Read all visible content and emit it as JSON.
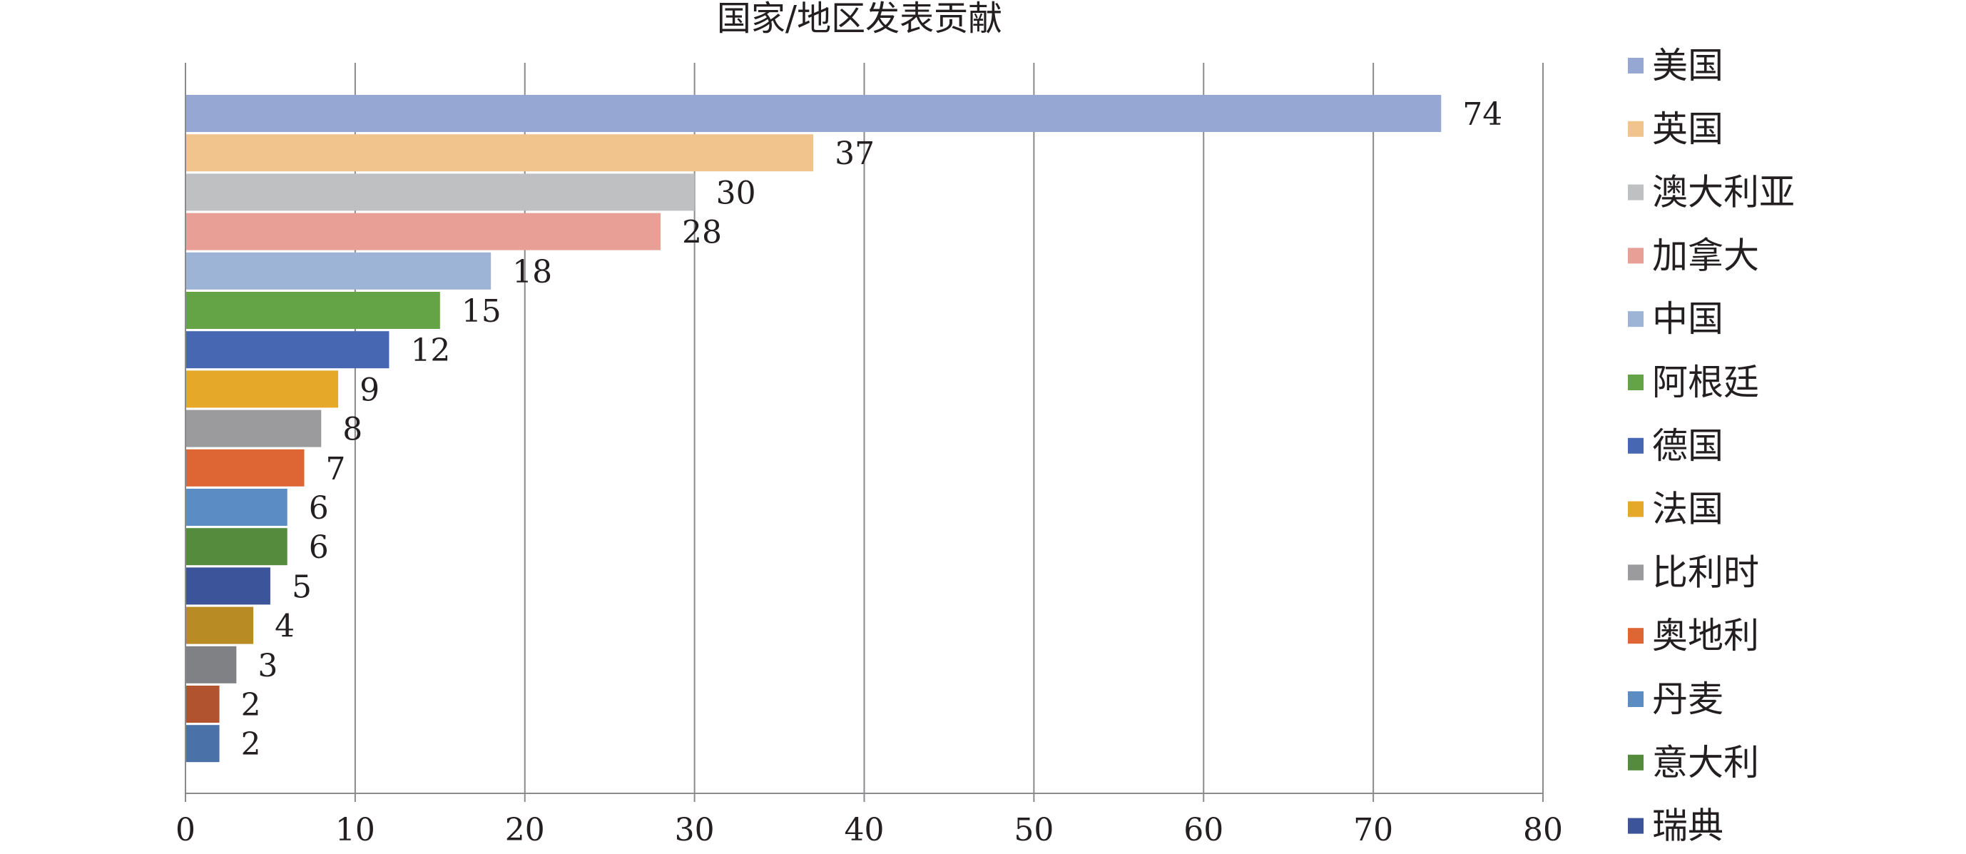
{
  "chart_data": {
    "type": "bar",
    "orientation": "horizontal",
    "title": "国家/地区发表贡献",
    "xlabel": "",
    "ylabel": "",
    "xlim": [
      0,
      80
    ],
    "x_ticks": [
      0,
      10,
      20,
      30,
      40,
      50,
      60,
      70,
      80
    ],
    "grid": true,
    "legend_position": "right",
    "bars": [
      {
        "value": 74,
        "color": "#97a7d3"
      },
      {
        "value": 37,
        "color": "#f2c48d"
      },
      {
        "value": 30,
        "color": "#bfc0c2"
      },
      {
        "value": 28,
        "color": "#e89f96"
      },
      {
        "value": 18,
        "color": "#9db4d7"
      },
      {
        "value": 15,
        "color": "#64a446"
      },
      {
        "value": 12,
        "color": "#4767b2"
      },
      {
        "value": 9,
        "color": "#e6a828"
      },
      {
        "value": 8,
        "color": "#9b9b9d"
      },
      {
        "value": 7,
        "color": "#de6534"
      },
      {
        "value": 6,
        "color": "#5b8cc4"
      },
      {
        "value": 6,
        "color": "#548b3c"
      },
      {
        "value": 5,
        "color": "#3c5499"
      },
      {
        "value": 4,
        "color": "#b98b24"
      },
      {
        "value": 3,
        "color": "#808184"
      },
      {
        "value": 2,
        "color": "#b0532e"
      },
      {
        "value": 2,
        "color": "#4b72a8"
      }
    ],
    "legend": [
      {
        "name": "美国",
        "color": "#97a7d3"
      },
      {
        "name": "英国",
        "color": "#f2c48d"
      },
      {
        "name": "澳大利亚",
        "color": "#bfc0c2"
      },
      {
        "name": "加拿大",
        "color": "#e89f96"
      },
      {
        "name": "中国",
        "color": "#9db4d7"
      },
      {
        "name": "阿根廷",
        "color": "#64a446"
      },
      {
        "name": "德国",
        "color": "#4767b2"
      },
      {
        "name": "法国",
        "color": "#e6a828"
      },
      {
        "name": "比利时",
        "color": "#9b9b9d"
      },
      {
        "name": "奥地利",
        "color": "#de6534"
      },
      {
        "name": "丹麦",
        "color": "#5b8cc4"
      },
      {
        "name": "意大利",
        "color": "#548b3c"
      },
      {
        "name": "瑞典",
        "color": "#3c5499"
      }
    ]
  }
}
